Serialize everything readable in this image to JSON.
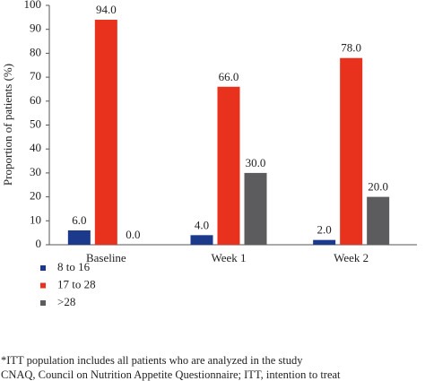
{
  "chart_data": {
    "type": "bar",
    "y_label": "Proportion of patients (%)",
    "categories": [
      "Baseline",
      "Week 1",
      "Week 2"
    ],
    "series": [
      {
        "name": "8 to 16",
        "color": "#1b3a8c",
        "values": [
          6,
          4,
          2
        ],
        "value_labels": [
          "6.0",
          "4.0",
          "2.0"
        ]
      },
      {
        "name": "17 to 28",
        "color": "#e8321e",
        "values": [
          94,
          66,
          78
        ],
        "value_labels": [
          "94.0",
          "66.0",
          "78.0"
        ]
      },
      {
        "name": ">28",
        "color": "#5c5c5e",
        "values": [
          0,
          30,
          20
        ],
        "value_labels": [
          "0.0",
          "30.0",
          "20.0"
        ]
      }
    ],
    "ylim": [
      0,
      100
    ],
    "yticks": [
      0,
      10,
      20,
      30,
      40,
      50,
      60,
      70,
      80,
      90,
      100
    ],
    "grid": false,
    "legend": "bottom-left",
    "footnotes": [
      "*ITT population includes all patients who are analyzed in the study",
      "CNAQ, Council on Nutrition Appetite Questionnaire; ITT, intention to treat"
    ]
  }
}
